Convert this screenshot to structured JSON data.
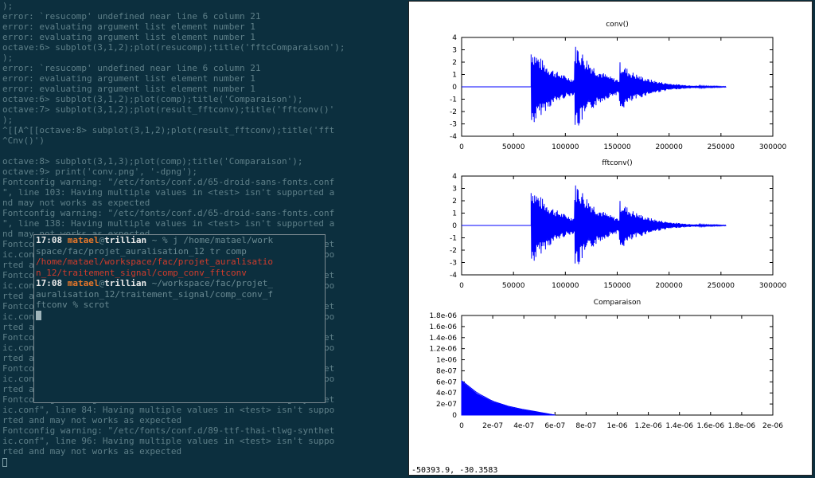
{
  "terminal": {
    "lines": [
      ");",
      "error: `resucomp' undefined near line 6 column 21",
      "error: evaluating argument list element number 1",
      "error: evaluating argument list element number 1",
      "octave:6> subplot(3,1,2);plot(resucomp);title('fftcComparaison');",
      ");",
      "error: `resucomp' undefined near line 6 column 21",
      "error: evaluating argument list element number 1",
      "error: evaluating argument list element number 1",
      "octave:6> subplot(3,1,2);plot(comp);title('Comparaison');",
      "octave:7> subplot(3,1,2);plot(result_fftconv);title('fftconv()'",
      ");",
      "^[[A^[[octave:8> subplot(3,1,2);plot(result_fftconv);title('fft",
      "^Cnv()')",
      "",
      "octave:8> subplot(3,1,3);plot(comp);title('Comparaison');",
      "octave:9> print('conv.png', '-dpng');",
      "Fontconfig warning: \"/etc/fonts/conf.d/65-droid-sans-fonts.conf",
      "\", line 103: Having multiple values in <test> isn't supported a",
      "nd may not works as expected",
      "Fontconfig warning: \"/etc/fonts/conf.d/65-droid-sans-fonts.conf",
      "\", line 138: Having multiple values in <test> isn't supported a",
      "nd may not works as expected",
      "Fontconfig warning: \"/etc/fonts/conf.d/89-ttf-thai-tlwg-synthet",
      "ic.conf\", line 84: Having multiple values in <test> isn't suppo",
      "rted and may not works as expected",
      "Fontconfig warning: \"/etc/fonts/conf.d/89-ttf-thai-tlwg-synthet",
      "ic.conf\", line 96: Having multiple values in <test> isn't suppo",
      "rted and may not works as expected",
      "Fontconfig warning: \"/etc/fonts/conf.d/89-ttf-thai-tlwg-synthet",
      "ic.conf\", line 84: Having multiple values in <test> isn't suppo",
      "rted and may not works as expected",
      "Fontconfig warning: \"/etc/fonts/conf.d/89-ttf-thai-tlwg-synthet",
      "ic.conf\", line 96: Having multiple values in <test> isn't suppo",
      "rted and may not works as expected",
      "Fontconfig warning: \"/etc/fonts/conf.d/89-ttf-thai-tlwg-synthet",
      "ic.conf\", line 84: Having multiple values in <test> isn't suppo",
      "rted and may not works as expected",
      "Fontconfig warning: \"/etc/fonts/conf.d/89-ttf-thai-tlwg-synthet",
      "ic.conf\", line 84: Having multiple values in <test> isn't suppo",
      "rted and may not works as expected",
      "Fontconfig warning: \"/etc/fonts/conf.d/89-ttf-thai-tlwg-synthet",
      "ic.conf\", line 96: Having multiple values in <test> isn't suppo",
      "rted and may not works as expected"
    ]
  },
  "floating_terminal": {
    "prompt1": {
      "time": "17:08",
      "user": "matael",
      "at": "@",
      "host": "trillian",
      "path": " ~ % ",
      "cmd_line1": "j /home/matael/work",
      "cmd_line2": "space/fac/projet_auralisation_12 tr comp"
    },
    "output_line1": "/home/matael/workspace/fac/projet_auralisatio",
    "output_line2": "n_12/traitement_signal/comp_conv_fftconv",
    "prompt2": {
      "time": "17:08",
      "user": "matael",
      "at": "@",
      "host": "trillian",
      "path_line1": " ~/workspace/fac/projet_",
      "path_line2": "auralisation_12/traitement_signal/comp_conv_f",
      "path_line3": "ftconv % scrot"
    }
  },
  "plot_window": {
    "coords": "-50393.9, -30.3583",
    "colors": {
      "series": "#0000ff",
      "axes": "#000000",
      "background": "#ffffff"
    }
  },
  "chart_data": [
    {
      "type": "line",
      "title": "conv()",
      "xlim": [
        0,
        300000
      ],
      "ylim": [
        -4,
        4
      ],
      "xticks": [
        "0",
        "50000",
        "100000",
        "150000",
        "200000",
        "250000",
        "300000"
      ],
      "yticks": [
        "-4",
        "-3",
        "-2",
        "-1",
        "0",
        "1",
        "2",
        "3",
        "4"
      ],
      "signal_end": 255000,
      "bursts": [
        {
          "start": 67000,
          "peak": 3.4,
          "decay": 25000
        },
        {
          "start": 109000,
          "peak": 3.3,
          "decay": 22000
        },
        {
          "start": 152000,
          "peak": 1.5,
          "decay": 25000
        }
      ]
    },
    {
      "type": "line",
      "title": "fftconv()",
      "xlim": [
        0,
        300000
      ],
      "ylim": [
        -4,
        4
      ],
      "xticks": [
        "0",
        "50000",
        "100000",
        "150000",
        "200000",
        "250000",
        "300000"
      ],
      "yticks": [
        "-4",
        "-3",
        "-2",
        "-1",
        "0",
        "1",
        "2",
        "3",
        "4"
      ],
      "signal_end": 255000,
      "bursts": [
        {
          "start": 67000,
          "peak": 3.4,
          "decay": 25000
        },
        {
          "start": 109000,
          "peak": 3.3,
          "decay": 22000
        },
        {
          "start": 152000,
          "peak": 1.5,
          "decay": 25000
        }
      ]
    },
    {
      "type": "area",
      "title": "Comparaison",
      "xlim": [
        0,
        2e-06
      ],
      "ylim": [
        0,
        1.8e-06
      ],
      "xticks": [
        "0",
        "2e-07",
        "4e-07",
        "6e-07",
        "8e-07",
        "1e-06",
        "1.2e-06",
        "1.4e-06",
        "1.6e-06",
        "1.8e-06",
        "2e-06"
      ],
      "yticks": [
        "0",
        "2e-07",
        "4e-07",
        "6e-07",
        "8e-07",
        "1e-06",
        "1.2e-06",
        "1.4e-06",
        "1.6e-06",
        "1.8e-06"
      ],
      "envelope": [
        [
          0,
          6e-07
        ],
        [
          1e-07,
          3.8e-07
        ],
        [
          2e-07,
          2.3e-07
        ],
        [
          3e-07,
          1.4e-07
        ],
        [
          4e-07,
          8e-08
        ],
        [
          5e-07,
          4e-08
        ],
        [
          6e-07,
          0
        ]
      ]
    }
  ]
}
